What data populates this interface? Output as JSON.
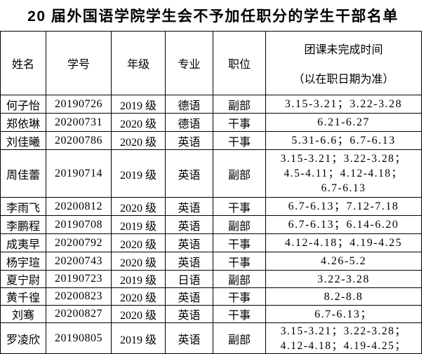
{
  "title": "20 届外国语学院学生会不予加任职分的学生干部名单",
  "table": {
    "columns": [
      "姓名",
      "学号",
      "年级",
      "专业",
      "职位"
    ],
    "time_header": {
      "line1": "团课未完成时间",
      "line2": "（以在职日期为准）"
    },
    "rows": [
      {
        "name": "何子怡",
        "student_id": "20190726",
        "grade": "2019 级",
        "major": "德语",
        "position": "副部",
        "times": [
          "3.15-3.21；3.22-3.28"
        ]
      },
      {
        "name": "郑依琳",
        "student_id": "20200731",
        "grade": "2020 级",
        "major": "德语",
        "position": "干事",
        "times": [
          "6.21-6.27"
        ]
      },
      {
        "name": "刘佳曦",
        "student_id": "20200786",
        "grade": "2020 级",
        "major": "英语",
        "position": "干事",
        "times": [
          "5.31-6.6；6.7-6.13"
        ]
      },
      {
        "name": "周佳蕾",
        "student_id": "20190714",
        "grade": "2019 级",
        "major": "英语",
        "position": "副部",
        "times": [
          "3.15-3.21；3.22-3.28；",
          "4.5-4.11；4.12-4.18；",
          "6.7-6.13"
        ]
      },
      {
        "name": "李雨飞",
        "student_id": "20200812",
        "grade": "2020 级",
        "major": "英语",
        "position": "干事",
        "times": [
          "6.7-6.13；7.12-7.18"
        ]
      },
      {
        "name": "李鹏程",
        "student_id": "20190708",
        "grade": "2019 级",
        "major": "英语",
        "position": "副部",
        "times": [
          "6.7-6.13；6.14-6.20"
        ]
      },
      {
        "name": "成夷早",
        "student_id": "20200792",
        "grade": "2020 级",
        "major": "英语",
        "position": "干事",
        "times": [
          "4.12-4.18；4.19-4.25"
        ]
      },
      {
        "name": "杨宇瑄",
        "student_id": "20200743",
        "grade": "2020 级",
        "major": "英语",
        "position": "干事",
        "times": [
          "4.26-5.2"
        ]
      },
      {
        "name": "夏宁尉",
        "student_id": "20190723",
        "grade": "2019 级",
        "major": "日语",
        "position": "副部",
        "times": [
          "3.22-3.28"
        ]
      },
      {
        "name": "黄千徨",
        "student_id": "20200823",
        "grade": "2020 级",
        "major": "英语",
        "position": "干事",
        "times": [
          "8.2-8.8"
        ]
      },
      {
        "name": "刘骞",
        "student_id": "20200827",
        "grade": "2020 级",
        "major": "英语",
        "position": "干事",
        "times": [
          "6.7-6.13；"
        ]
      },
      {
        "name": "罗凌欣",
        "student_id": "20190805",
        "grade": "2019 级",
        "major": "英语",
        "position": "副部",
        "times": [
          "3.15-3.21；3.22-3.28；",
          "4.12-4.18；4.19-4.25；"
        ]
      }
    ]
  },
  "colors": {
    "text": "#000000",
    "border": "#000000",
    "background": "#ffffff"
  }
}
